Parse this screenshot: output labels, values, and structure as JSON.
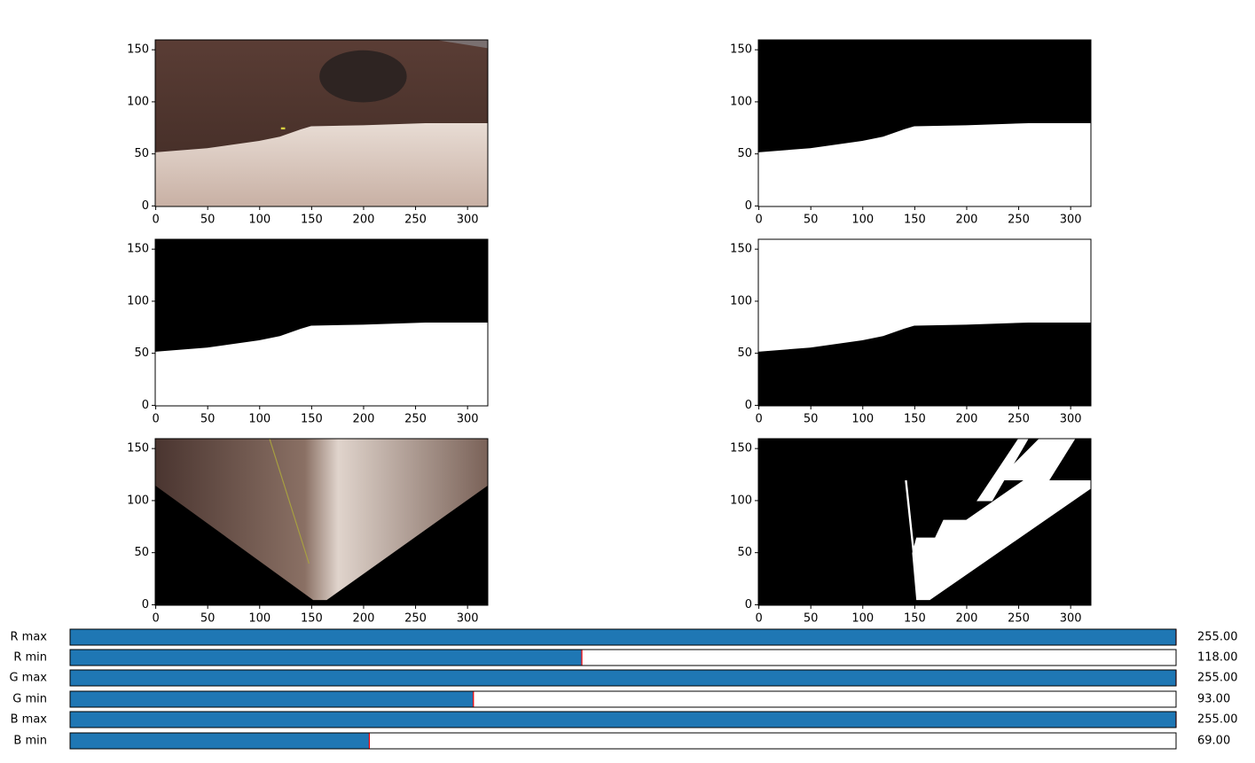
{
  "panels": [
    {
      "xlim": [
        -0.5,
        319.5
      ],
      "ylim": [
        159.5,
        -0.5
      ],
      "xticks": [
        0,
        50,
        100,
        150,
        200,
        250,
        300
      ],
      "yticks": [
        0,
        50,
        100,
        150
      ]
    },
    {
      "xlim": [
        -0.5,
        319.5
      ],
      "ylim": [
        159.5,
        -0.5
      ],
      "xticks": [
        0,
        50,
        100,
        150,
        200,
        250,
        300
      ],
      "yticks": [
        0,
        50,
        100,
        150
      ]
    },
    {
      "xlim": [
        -0.5,
        319.5
      ],
      "ylim": [
        159.5,
        -0.5
      ],
      "xticks": [
        0,
        50,
        100,
        150,
        200,
        250,
        300
      ],
      "yticks": [
        0,
        50,
        100,
        150
      ]
    },
    {
      "xlim": [
        -0.5,
        319.5
      ],
      "ylim": [
        159.5,
        -0.5
      ],
      "xticks": [
        0,
        50,
        100,
        150,
        200,
        250,
        300
      ],
      "yticks": [
        0,
        50,
        100,
        150
      ]
    },
    {
      "xlim": [
        -0.5,
        319.5
      ],
      "ylim": [
        159.5,
        -0.5
      ],
      "xticks": [
        0,
        50,
        100,
        150,
        200,
        250,
        300
      ],
      "yticks": [
        0,
        50,
        100,
        150
      ]
    },
    {
      "xlim": [
        -0.5,
        319.5
      ],
      "ylim": [
        159.5,
        -0.5
      ],
      "xticks": [
        0,
        50,
        100,
        150,
        200,
        250,
        300
      ],
      "yticks": [
        0,
        50,
        100,
        150
      ]
    }
  ],
  "sliders": {
    "range": [
      0,
      255
    ],
    "color": "#1f77b4",
    "items": [
      {
        "label": "R max",
        "value": {
          "value": 255,
          "label": "255.00"
        }
      },
      {
        "label": "R min",
        "value": {
          "value": 118,
          "label": "118.00"
        }
      },
      {
        "label": "G max",
        "value": {
          "value": 255,
          "label": "255.00"
        }
      },
      {
        "label": "G min",
        "value": {
          "value": 93,
          "label": "93.00"
        }
      },
      {
        "label": "B max",
        "value": {
          "value": 255,
          "label": "255.00"
        }
      },
      {
        "label": "B min",
        "value": {
          "value": 69,
          "label": "69.00"
        }
      }
    ]
  }
}
